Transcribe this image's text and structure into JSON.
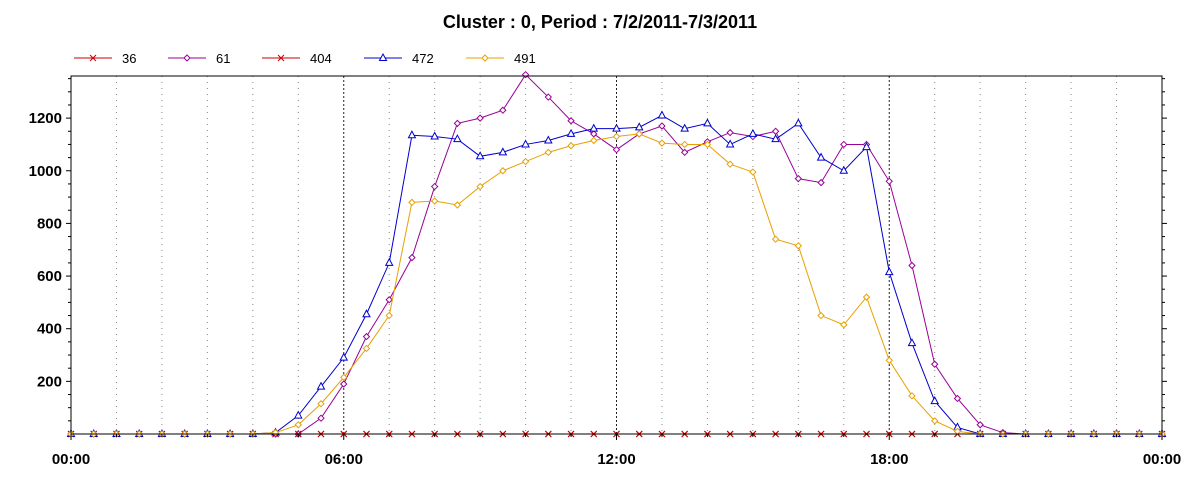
{
  "chart_data": {
    "type": "line",
    "title": "Cluster : 0, Period : 7/2/2011-7/3/2011",
    "xlabel": "",
    "ylabel": "",
    "x_unit": "hour",
    "xlim": [
      0,
      24
    ],
    "ylim": [
      0,
      1360
    ],
    "x_ticks": [
      0,
      6,
      12,
      18,
      24
    ],
    "x_tick_labels": [
      "00:00",
      "06:00",
      "12:00",
      "18:00",
      "00:00"
    ],
    "y_ticks": [
      200,
      400,
      600,
      800,
      1000,
      1200
    ],
    "y_tick_labels": [
      "200",
      "400",
      "600",
      "800",
      "1000",
      "1200"
    ],
    "grid": "dotted vertical lines every hour, solid-dotted emphasis at 6-hour marks",
    "legend_position": "top-left",
    "x": [
      0,
      0.5,
      1,
      1.5,
      2,
      2.5,
      3,
      3.5,
      4,
      4.5,
      5,
      5.5,
      6,
      6.5,
      7,
      7.5,
      8,
      8.5,
      9,
      9.5,
      10,
      10.5,
      11,
      11.5,
      12,
      12.5,
      13,
      13.5,
      14,
      14.5,
      15,
      15.5,
      16,
      16.5,
      17,
      17.5,
      18,
      18.5,
      19,
      19.5,
      20,
      20.5,
      21,
      21.5,
      22,
      22.5,
      23,
      23.5,
      24
    ],
    "series": [
      {
        "name": "36",
        "color": "#cc0000",
        "marker": "x",
        "values": [
          0,
          0,
          0,
          0,
          0,
          0,
          0,
          0,
          0,
          0,
          0,
          0,
          0,
          0,
          0,
          0,
          0,
          0,
          0,
          0,
          0,
          0,
          0,
          0,
          0,
          0,
          0,
          0,
          0,
          0,
          0,
          0,
          0,
          0,
          0,
          0,
          0,
          0,
          0,
          0,
          0,
          0,
          0,
          0,
          0,
          0,
          0,
          0,
          0
        ]
      },
      {
        "name": "61",
        "color": "#990099",
        "marker": "diamond",
        "values": [
          0,
          0,
          0,
          0,
          0,
          0,
          0,
          0,
          0,
          0,
          0,
          60,
          190,
          370,
          510,
          670,
          940,
          1180,
          1200,
          1230,
          1365,
          1280,
          1190,
          1140,
          1080,
          1140,
          1170,
          1070,
          1110,
          1145,
          1130,
          1150,
          970,
          955,
          1100,
          1100,
          960,
          640,
          265,
          135,
          35,
          5,
          0,
          0,
          0,
          0,
          0,
          0,
          0
        ]
      },
      {
        "name": "404",
        "color": "#cc0000",
        "marker": "x",
        "values": [
          0,
          0,
          0,
          0,
          0,
          0,
          0,
          0,
          0,
          0,
          0,
          0,
          0,
          0,
          0,
          0,
          0,
          0,
          0,
          0,
          0,
          0,
          0,
          0,
          0,
          0,
          0,
          0,
          0,
          0,
          0,
          0,
          0,
          0,
          0,
          0,
          0,
          0,
          0,
          0,
          0,
          0,
          0,
          0,
          0,
          0,
          0,
          0,
          0
        ]
      },
      {
        "name": "472",
        "color": "#0000cc",
        "marker": "triangle",
        "values": [
          0,
          0,
          0,
          0,
          0,
          0,
          0,
          0,
          0,
          5,
          70,
          180,
          290,
          455,
          650,
          1135,
          1130,
          1120,
          1055,
          1070,
          1100,
          1115,
          1140,
          1160,
          1160,
          1165,
          1210,
          1160,
          1180,
          1100,
          1140,
          1120,
          1180,
          1050,
          1000,
          1090,
          615,
          345,
          125,
          25,
          0,
          0,
          0,
          0,
          0,
          0,
          0,
          0,
          0
        ]
      },
      {
        "name": "491",
        "color": "#e8a000",
        "marker": "diamond",
        "values": [
          0,
          0,
          0,
          0,
          0,
          0,
          0,
          0,
          0,
          5,
          35,
          115,
          215,
          325,
          450,
          880,
          885,
          870,
          940,
          1000,
          1035,
          1070,
          1095,
          1115,
          1130,
          1140,
          1105,
          1100,
          1100,
          1025,
          995,
          740,
          715,
          450,
          415,
          520,
          280,
          145,
          50,
          10,
          0,
          0,
          0,
          0,
          0,
          0,
          0,
          0,
          0
        ]
      }
    ]
  }
}
